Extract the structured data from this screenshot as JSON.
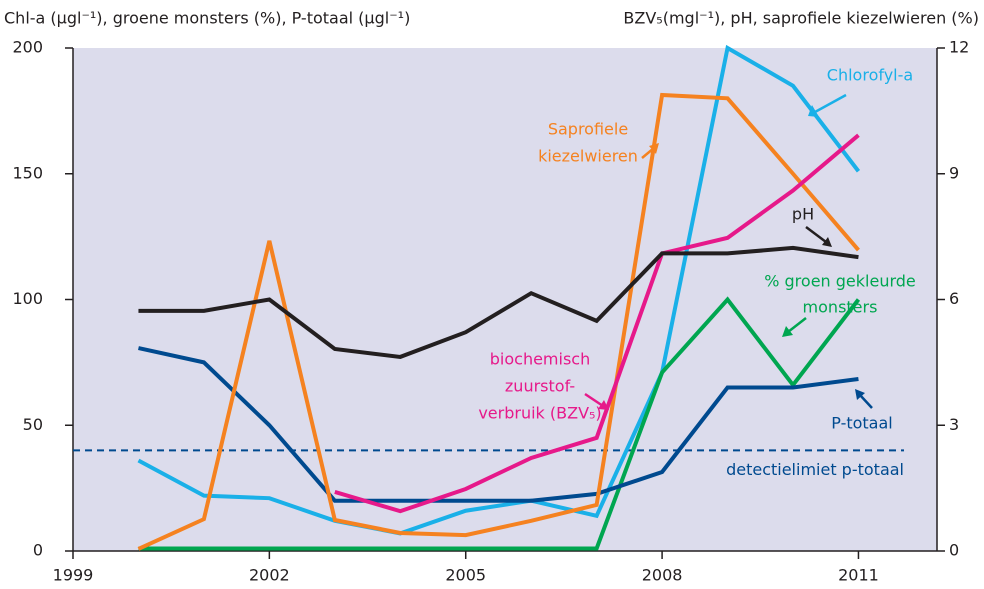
{
  "chart_data": {
    "type": "line",
    "y_label": "Chl-a (μgl⁻¹), groene monsters (%), P-totaal (μgl⁻¹)",
    "y2_label": "BZV₅(mgl⁻¹), pH, saprofiele kiezelwieren (%)",
    "x": [
      2000,
      2001,
      2002,
      2003,
      2004,
      2005,
      2006,
      2007,
      2008,
      2009,
      2010,
      2011
    ],
    "xlim": [
      1999,
      2012.2
    ],
    "xticks": [
      1999,
      2002,
      2005,
      2008,
      2011
    ],
    "ylim": [
      0,
      200
    ],
    "yticks": [
      0,
      50,
      100,
      150,
      200
    ],
    "y2lim": [
      0,
      12
    ],
    "y2ticks": [
      0,
      3,
      6,
      9,
      12
    ],
    "series": [
      {
        "name": "Chlorofyl-a",
        "color": "#1ab0e8",
        "values": [
          36,
          22,
          21,
          12,
          7,
          16,
          20,
          14,
          71,
          200,
          185,
          151
        ]
      },
      {
        "name": "% groen gekleurde monsters",
        "color": "#00a650",
        "values": [
          1,
          1,
          1,
          1,
          1,
          1,
          1,
          1,
          71,
          100,
          66,
          100
        ]
      },
      {
        "name": "P-totaal",
        "color": "#004a8f",
        "values": [
          80.7,
          75,
          50,
          20,
          20,
          20,
          20,
          22.7,
          31.4,
          65,
          65,
          68.4
        ]
      },
      {
        "name": "Saprofiele kiezelwieren",
        "color": "#f58220",
        "axis": "y2",
        "values": [
          0.05,
          0.76,
          7.4,
          0.74,
          0.43,
          0.38,
          0.72,
          1.1,
          10.88,
          10.8,
          9.0,
          7.18
        ]
      },
      {
        "name": "biochemisch zuurstofverbruik (BZV₅)",
        "color": "#e6198a",
        "axis": "y2",
        "values": [
          null,
          null,
          null,
          1.41,
          0.95,
          1.48,
          2.22,
          2.7,
          7.1,
          7.47,
          8.6,
          9.92
        ]
      },
      {
        "name": "pH",
        "color": "#231f20",
        "axis": "y2",
        "values": [
          5.73,
          5.73,
          6.0,
          4.82,
          4.63,
          5.22,
          6.15,
          5.49,
          7.1,
          7.1,
          7.23,
          7.01
        ]
      }
    ],
    "reference_line": {
      "value": 40,
      "label": "detectielimiet p-totaal",
      "color": "#004a8f"
    },
    "annotations": {
      "chlorofyl": "Chlorofyl-a",
      "saprofiele": [
        "Saprofiele",
        "kiezelwieren"
      ],
      "ph": "pH",
      "groen": [
        "% groen gekleurde",
        "monsters"
      ],
      "bzv": [
        "biochemisch",
        "zuurstof-",
        "verbruik (BZV₅)"
      ],
      "ptotaal": "P-totaal"
    }
  }
}
